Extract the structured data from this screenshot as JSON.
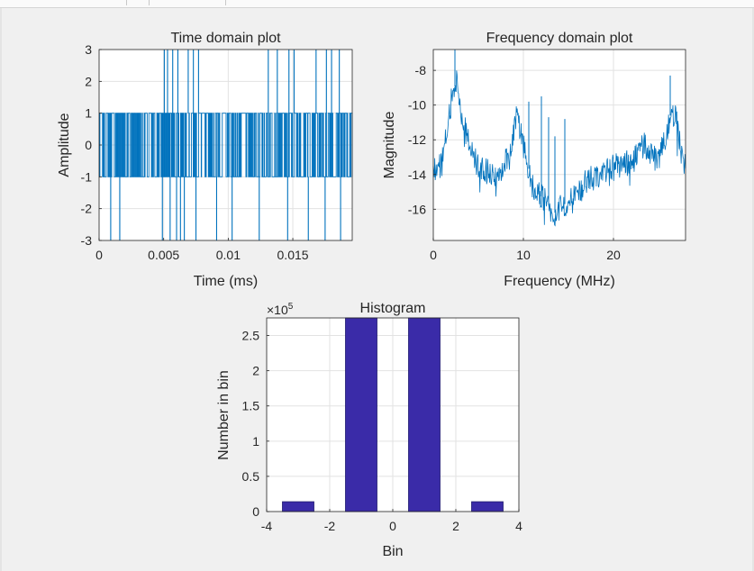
{
  "chart_data": [
    {
      "type": "line",
      "title": "Time domain plot",
      "xlabel": "Time (ms)",
      "ylabel": "Amplitude",
      "xlim": [
        0,
        0.0196
      ],
      "ylim": [
        -3,
        3
      ],
      "xticks": [
        0,
        0.005,
        0.01,
        0.015
      ],
      "xticklabels": [
        "0",
        "0.005",
        "0.01",
        "0.015"
      ],
      "yticks": [
        -3,
        -2,
        -1,
        0,
        1,
        2,
        3
      ],
      "yticklabels": [
        "-3",
        "-2",
        "-1",
        "0",
        "1",
        "2",
        "3"
      ],
      "grid": true,
      "series": [
        {
          "color": "#0072bd",
          "description": "dense random symbols switching between -1 and 1, with occasional spikes to +3 and -3",
          "level_values": [
            -1,
            1
          ],
          "spikes_to_plus3": [
            0.00505,
            0.0053,
            0.0057,
            0.0061,
            0.0069,
            0.0073,
            0.0077,
            0.0131,
            0.0138,
            0.0147,
            0.0151,
            0.0168,
            0.0176,
            0.018,
            0.0186
          ],
          "spikes_to_minus3": [
            0.0009,
            0.0016,
            0.0049,
            0.0055,
            0.006,
            0.0063,
            0.0066,
            0.0075,
            0.0091,
            0.0103,
            0.0124,
            0.0146,
            0.0162,
            0.0175,
            0.0187
          ]
        }
      ]
    },
    {
      "type": "line",
      "title": "Frequency domain plot",
      "xlabel": "Frequency (MHz)",
      "ylabel": "Magnitude",
      "xlim": [
        0,
        28
      ],
      "ylim": [
        -17.8,
        -6.8
      ],
      "xticks": [
        0,
        10,
        20
      ],
      "xticklabels": [
        "0",
        "10",
        "20"
      ],
      "yticks": [
        -16,
        -14,
        -12,
        -10,
        -8
      ],
      "yticklabels": [
        "-16",
        "-14",
        "-12",
        "-10",
        "-8"
      ],
      "grid": true,
      "series": [
        {
          "color": "#0072bd",
          "description": "noisy spectrum",
          "envelope": [
            [
              0,
              -13.8
            ],
            [
              1,
              -13.3
            ],
            [
              2,
              -9.8
            ],
            [
              2.6,
              -8.5
            ],
            [
              3.4,
              -11.2
            ],
            [
              5,
              -13.7
            ],
            [
              7,
              -14.1
            ],
            [
              8.5,
              -12.8
            ],
            [
              9.2,
              -10.6
            ],
            [
              9.8,
              -11.8
            ],
            [
              11,
              -14.6
            ],
            [
              12.5,
              -15.6
            ],
            [
              13.5,
              -16.2
            ],
            [
              15.5,
              -15.3
            ],
            [
              17.5,
              -14.2
            ],
            [
              20,
              -13.6
            ],
            [
              22,
              -13.3
            ],
            [
              23.5,
              -12.3
            ],
            [
              25,
              -13.4
            ],
            [
              26.3,
              -10.6
            ],
            [
              26.9,
              -10.5
            ],
            [
              27.5,
              -12.6
            ],
            [
              28,
              -13.7
            ]
          ],
          "peaks": [
            [
              2.4,
              -6.8
            ],
            [
              12.8,
              -10.7
            ],
            [
              13.5,
              -11.8
            ],
            [
              14.6,
              -10.8
            ],
            [
              12.0,
              -9.5
            ],
            [
              26.3,
              -8.3
            ],
            [
              10.6,
              -9.8
            ]
          ]
        }
      ]
    },
    {
      "type": "bar",
      "title": "Histogram",
      "xlabel": "Bin",
      "ylabel": "Number in bin",
      "exponent_label_base": "×10",
      "exponent_label_power": "5",
      "xlim": [
        -4,
        4
      ],
      "ylim": [
        0,
        2.75
      ],
      "xticks": [
        -4,
        -2,
        0,
        2,
        4
      ],
      "xticklabels": [
        "-4",
        "-2",
        "0",
        "2",
        "4"
      ],
      "yticks": [
        0,
        0.5,
        1,
        1.5,
        2,
        2.5
      ],
      "yticklabels": [
        "0",
        "0.5",
        "1",
        "1.5",
        "2",
        "2.5"
      ],
      "bar_color": "#3a2ba8",
      "bar_edge_color": "#1f1a70",
      "grid": true,
      "bars": [
        {
          "x": -3,
          "width": 1,
          "value": 0.14
        },
        {
          "x": -1,
          "width": 1,
          "value": 2.75
        },
        {
          "x": 1,
          "width": 1,
          "value": 2.75
        },
        {
          "x": 3,
          "width": 1,
          "value": 0.14
        }
      ]
    }
  ]
}
